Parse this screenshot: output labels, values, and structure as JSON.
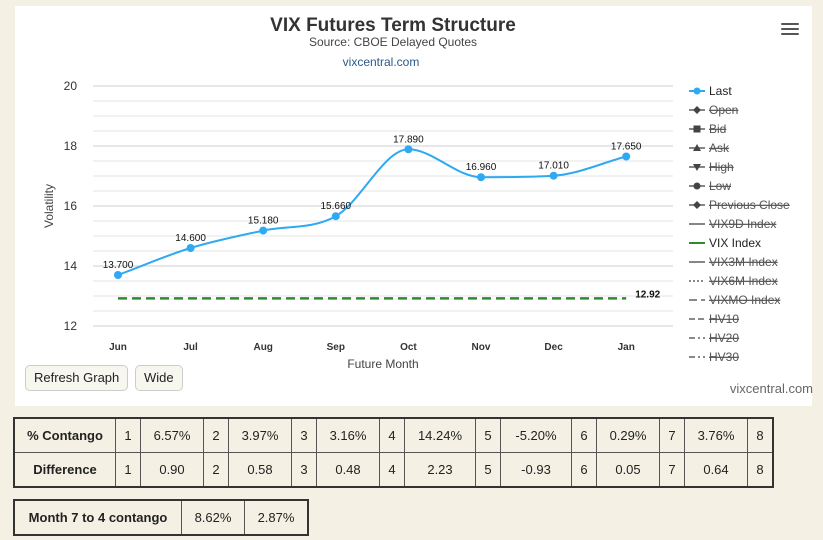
{
  "chart_data": {
    "type": "line",
    "title": "VIX Futures Term Structure",
    "subtitle": "Source: CBOE Delayed Quotes",
    "source_link": "vixcentral.com",
    "xlabel": "Future Month",
    "ylabel": "Volatility",
    "categories": [
      "Jun",
      "Jul",
      "Aug",
      "Sep",
      "Oct",
      "Nov",
      "Dec",
      "Jan"
    ],
    "ylim": [
      12,
      20
    ],
    "yticks": [
      12,
      14,
      16,
      18,
      20
    ],
    "grid": true,
    "legend_position": "right",
    "series": [
      {
        "name": "Last",
        "values": [
          13.7,
          14.6,
          15.18,
          15.66,
          17.89,
          16.96,
          17.01,
          17.65
        ],
        "labels": [
          "13.700",
          "14.600",
          "15.180",
          "15.660",
          "17.890",
          "16.960",
          "17.010",
          "17.650"
        ],
        "color": "#2fa9f2"
      },
      {
        "name": "VIX Index",
        "values": [
          12.92,
          12.92,
          12.92,
          12.92,
          12.92,
          12.92,
          12.92,
          12.92
        ],
        "end_label": "12.92",
        "color": "#2e8b2e"
      }
    ],
    "legend": [
      {
        "name": "Last",
        "active": true,
        "marker": "circle",
        "color": "#2fa9f2",
        "dash": "solid"
      },
      {
        "name": "Open",
        "active": false,
        "marker": "diamond",
        "color": "#555555",
        "dash": "solid"
      },
      {
        "name": "Bid",
        "active": false,
        "marker": "square",
        "color": "#555555",
        "dash": "solid"
      },
      {
        "name": "Ask",
        "active": false,
        "marker": "triangle",
        "color": "#555555",
        "dash": "solid"
      },
      {
        "name": "High",
        "active": false,
        "marker": "triangle-down",
        "color": "#555555",
        "dash": "solid"
      },
      {
        "name": "Low",
        "active": false,
        "marker": "circle",
        "color": "#555555",
        "dash": "solid"
      },
      {
        "name": "Previous Close",
        "active": false,
        "marker": "diamond",
        "color": "#555555",
        "dash": "solid"
      },
      {
        "name": "VIX9D Index",
        "active": false,
        "marker": "none",
        "color": "#555555",
        "dash": "solid"
      },
      {
        "name": "VIX Index",
        "active": true,
        "marker": "none",
        "color": "#2e8b2e",
        "dash": "solid"
      },
      {
        "name": "VIX3M Index",
        "active": false,
        "marker": "none",
        "color": "#555555",
        "dash": "solid"
      },
      {
        "name": "VIX6M Index",
        "active": false,
        "marker": "none",
        "color": "#555555",
        "dash": "dot"
      },
      {
        "name": "VIXMO Index",
        "active": false,
        "marker": "none",
        "color": "#555555",
        "dash": "longdash"
      },
      {
        "name": "HV10",
        "active": false,
        "marker": "none",
        "color": "#555555",
        "dash": "dash"
      },
      {
        "name": "HV20",
        "active": false,
        "marker": "none",
        "color": "#555555",
        "dash": "dashdot"
      },
      {
        "name": "HV30",
        "active": false,
        "marker": "none",
        "color": "#555555",
        "dash": "dashdot"
      }
    ]
  },
  "controls": {
    "refresh_label": "Refresh Graph",
    "wide_label": "Wide",
    "credit": "vixcentral.com"
  },
  "contango_table": {
    "rows": [
      {
        "label": "% Contango",
        "cells": [
          [
            "1",
            "6.57%"
          ],
          [
            "2",
            "3.97%"
          ],
          [
            "3",
            "3.16%"
          ],
          [
            "4",
            "14.24%"
          ],
          [
            "5",
            "-5.20%"
          ],
          [
            "6",
            "0.29%"
          ],
          [
            "7",
            "3.76%"
          ],
          [
            "8",
            ""
          ]
        ]
      },
      {
        "label": "Difference",
        "cells": [
          [
            "1",
            "0.90"
          ],
          [
            "2",
            "0.58"
          ],
          [
            "3",
            "0.48"
          ],
          [
            "4",
            "2.23"
          ],
          [
            "5",
            "-0.93"
          ],
          [
            "6",
            "0.05"
          ],
          [
            "7",
            "0.64"
          ],
          [
            "8",
            ""
          ]
        ]
      }
    ]
  },
  "month_table": {
    "label": "Month 7 to 4 contango",
    "values": [
      "8.62%",
      "2.87%"
    ]
  }
}
